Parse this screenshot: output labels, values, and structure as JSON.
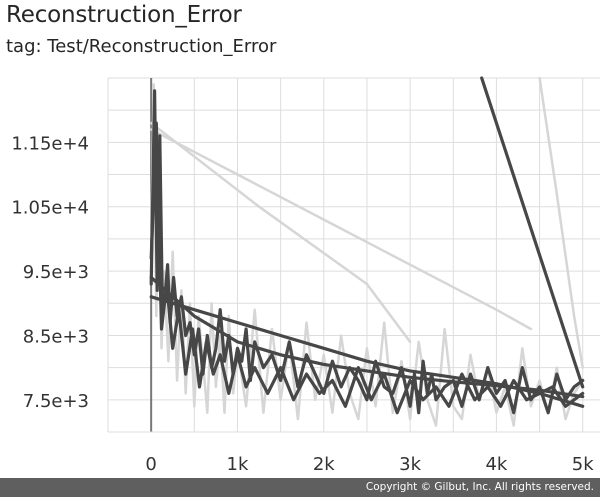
{
  "header": {
    "title": "Reconstruction_Error",
    "tag": "tag: Test/Reconstruction_Error"
  },
  "footer": {
    "copyright": "Copyright © Gilbut, Inc. All rights reserved."
  },
  "chart_data": {
    "type": "line",
    "title": "Reconstruction_Error",
    "subtitle": "tag: Test/Reconstruction_Error",
    "xlabel": "",
    "ylabel": "",
    "xlim": [
      -500,
      5200
    ],
    "ylim": [
      7000,
      12500
    ],
    "x_ticks": [
      0,
      1000,
      2000,
      3000,
      4000,
      5000
    ],
    "x_tick_labels": [
      "0",
      "1k",
      "2k",
      "3k",
      "4k",
      "5k"
    ],
    "y_ticks": [
      7500,
      8500,
      9500,
      10500,
      11500
    ],
    "y_tick_labels": [
      "7.5e+3",
      "8.5e+3",
      "9.5e+3",
      "1.05e+4",
      "1.15e+4"
    ],
    "grid": true,
    "legend": "none",
    "colors": {
      "smoothed": "#474747",
      "raw": "#d6d6d6",
      "grid": "#dddddd",
      "axis": "#777777"
    },
    "series": [
      {
        "role": "smoothed",
        "x": [
          0,
          40,
          70,
          100,
          130,
          160,
          190,
          220,
          260,
          300,
          350,
          400,
          450,
          500,
          550,
          600,
          650,
          700,
          750,
          800,
          850,
          900,
          950,
          1000,
          1050,
          1100,
          1150,
          1200,
          1300,
          1400,
          1500,
          1600,
          1700,
          1800,
          1900,
          2000,
          2100,
          2200,
          2300,
          2400,
          2500,
          2600,
          2700,
          2800,
          2900,
          3000,
          3050,
          3100,
          3150,
          3200,
          3250,
          3300,
          3400,
          3500,
          3600,
          3700,
          3800,
          3900,
          4000,
          4100,
          4200,
          4300,
          4400,
          4500,
          4600,
          4700,
          4800,
          4900,
          5000
        ],
        "y": [
          9300,
          12300,
          9200,
          11600,
          8900,
          9100,
          9600,
          8700,
          9400,
          8800,
          9100,
          8500,
          8700,
          8200,
          8600,
          7900,
          8500,
          8000,
          8300,
          8900,
          8100,
          8500,
          7900,
          8300,
          8100,
          8600,
          7800,
          8400,
          8000,
          8200,
          7800,
          8400,
          7700,
          8200,
          7900,
          7600,
          8100,
          7700,
          8000,
          7800,
          7500,
          8100,
          7700,
          7600,
          8000,
          7400,
          7900,
          7300,
          8100,
          7600,
          7900,
          7500,
          7700,
          7800,
          7400,
          7900,
          7500,
          8000,
          7600,
          7800,
          7300,
          8000,
          7500,
          7700,
          7300,
          7900,
          7500,
          7700,
          7800
        ]
      },
      {
        "role": "smoothed",
        "x": [
          0,
          60,
          120,
          180,
          250,
          320,
          400,
          480,
          560,
          640,
          720,
          800,
          900,
          1000,
          1100,
          1200,
          1350,
          1500,
          1650,
          1800,
          1950,
          2100,
          2250,
          2400,
          2550,
          2700,
          2850,
          3000,
          3150,
          3300,
          3450,
          3600,
          3750,
          3900,
          4050,
          4200,
          4350,
          4500,
          4650,
          4800,
          5000
        ],
        "y": [
          9700,
          11800,
          8600,
          9300,
          8300,
          8900,
          7900,
          8600,
          7700,
          8400,
          7900,
          8200,
          7600,
          8200,
          7700,
          8000,
          7600,
          8000,
          7500,
          7900,
          7600,
          7800,
          7400,
          8000,
          7500,
          7900,
          7300,
          7800,
          7500,
          7700,
          7400,
          7900,
          7500,
          7700,
          7400,
          7800,
          7500,
          7600,
          7700,
          7400,
          7600
        ]
      },
      {
        "role": "smoothed",
        "x": [
          0,
          500,
          1000,
          1500,
          2000,
          2500,
          3000,
          3500,
          4000,
          4500,
          5000
        ],
        "y": [
          9100,
          8900,
          8700,
          8500,
          8300,
          8100,
          7950,
          7850,
          7750,
          7600,
          7400
        ]
      },
      {
        "role": "smoothed",
        "x": [
          0,
          500,
          1000,
          1500,
          2000,
          2500,
          3000,
          3500,
          4000,
          4500,
          5000
        ],
        "y": [
          9400,
          8800,
          8400,
          8200,
          8050,
          7950,
          7850,
          7780,
          7720,
          7650,
          7550
        ]
      },
      {
        "role": "smoothed",
        "x": [
          3830,
          5000
        ],
        "y": [
          12600,
          7700
        ]
      },
      {
        "role": "raw",
        "x": [
          0,
          30,
          60,
          90,
          120,
          150,
          200,
          250,
          300,
          350,
          400,
          450,
          500,
          550,
          600,
          650,
          700,
          750,
          800,
          850,
          900,
          950,
          1000,
          1100,
          1200,
          1300,
          1400,
          1500,
          1600,
          1700,
          1800,
          1900,
          2000,
          2100,
          2200,
          2300,
          2400,
          2500,
          2600,
          2700,
          2800,
          2900,
          3000,
          3100,
          3200,
          3300,
          3400,
          3500,
          3600,
          3700,
          3800,
          3900,
          4000,
          4100,
          4200,
          4300,
          4400,
          4500,
          4600,
          4700,
          4800,
          4900,
          5000
        ],
        "y": [
          10000,
          12400,
          8800,
          11200,
          8300,
          9500,
          8100,
          9800,
          7800,
          9200,
          7600,
          9000,
          7400,
          8800,
          8100,
          7300,
          9000,
          7700,
          8500,
          7300,
          8800,
          7600,
          8300,
          7400,
          8900,
          7300,
          8600,
          7500,
          8400,
          7200,
          8700,
          7500,
          8200,
          7300,
          8500,
          7600,
          7200,
          8300,
          7400,
          8700,
          7300,
          8100,
          7200,
          8400,
          7500,
          7100,
          8600,
          7400,
          7200,
          8200,
          7500,
          8000,
          7300,
          7700,
          7100,
          8300,
          7400,
          7800,
          7300,
          8000,
          7200,
          7600,
          7800
        ]
      },
      {
        "role": "raw",
        "x": [
          0,
          1250,
          2500,
          3000
        ],
        "y": [
          11800,
          10500,
          9300,
          8400
        ]
      },
      {
        "role": "raw",
        "x": [
          0,
          1000,
          2000,
          3000,
          4000,
          4400
        ],
        "y": [
          11700,
          11000,
          10300,
          9600,
          8900,
          8600
        ]
      },
      {
        "role": "raw",
        "x": [
          4500,
          4700,
          4900,
          5000
        ],
        "y": [
          12500,
          10700,
          8800,
          8000
        ]
      }
    ]
  }
}
